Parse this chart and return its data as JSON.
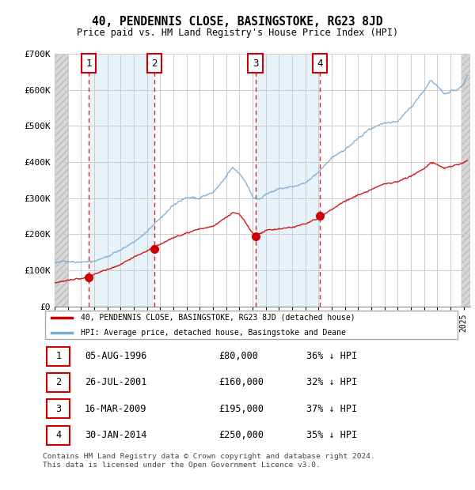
{
  "title": "40, PENDENNIS CLOSE, BASINGSTOKE, RG23 8JD",
  "subtitle": "Price paid vs. HM Land Registry's House Price Index (HPI)",
  "ylim": [
    0,
    700000
  ],
  "yticks": [
    0,
    100000,
    200000,
    300000,
    400000,
    500000,
    600000,
    700000
  ],
  "ytick_labels": [
    "£0",
    "£100K",
    "£200K",
    "£300K",
    "£400K",
    "£500K",
    "£600K",
    "£700K"
  ],
  "xlim_start": 1994.0,
  "xlim_end": 2025.5,
  "sales": [
    {
      "num": 1,
      "date": "05-AUG-1996",
      "year": 1996.59,
      "price": 80000,
      "pct": "36%"
    },
    {
      "num": 2,
      "date": "26-JUL-2001",
      "year": 2001.57,
      "price": 160000,
      "pct": "32%"
    },
    {
      "num": 3,
      "date": "16-MAR-2009",
      "year": 2009.21,
      "price": 195000,
      "pct": "37%"
    },
    {
      "num": 4,
      "date": "30-JAN-2014",
      "year": 2014.08,
      "price": 250000,
      "pct": "35%"
    }
  ],
  "legend_label_red": "40, PENDENNIS CLOSE, BASINGSTOKE, RG23 8JD (detached house)",
  "legend_label_blue": "HPI: Average price, detached house, Basingstoke and Deane",
  "footer": "Contains HM Land Registry data © Crown copyright and database right 2024.\nThis data is licensed under the Open Government Licence v3.0.",
  "red_color": "#cc0000",
  "blue_color": "#7aadd4",
  "blue_band_color": "#ddeef7",
  "hatch_color": "#cccccc",
  "bg_hatch_color": "#d8d8d8",
  "table_rows": [
    [
      "1",
      "05-AUG-1996",
      "£80,000",
      "36% ↓ HPI"
    ],
    [
      "2",
      "26-JUL-2001",
      "£160,000",
      "32% ↓ HPI"
    ],
    [
      "3",
      "16-MAR-2009",
      "£195,000",
      "37% ↓ HPI"
    ],
    [
      "4",
      "30-JAN-2014",
      "£250,000",
      "35% ↓ HPI"
    ]
  ]
}
